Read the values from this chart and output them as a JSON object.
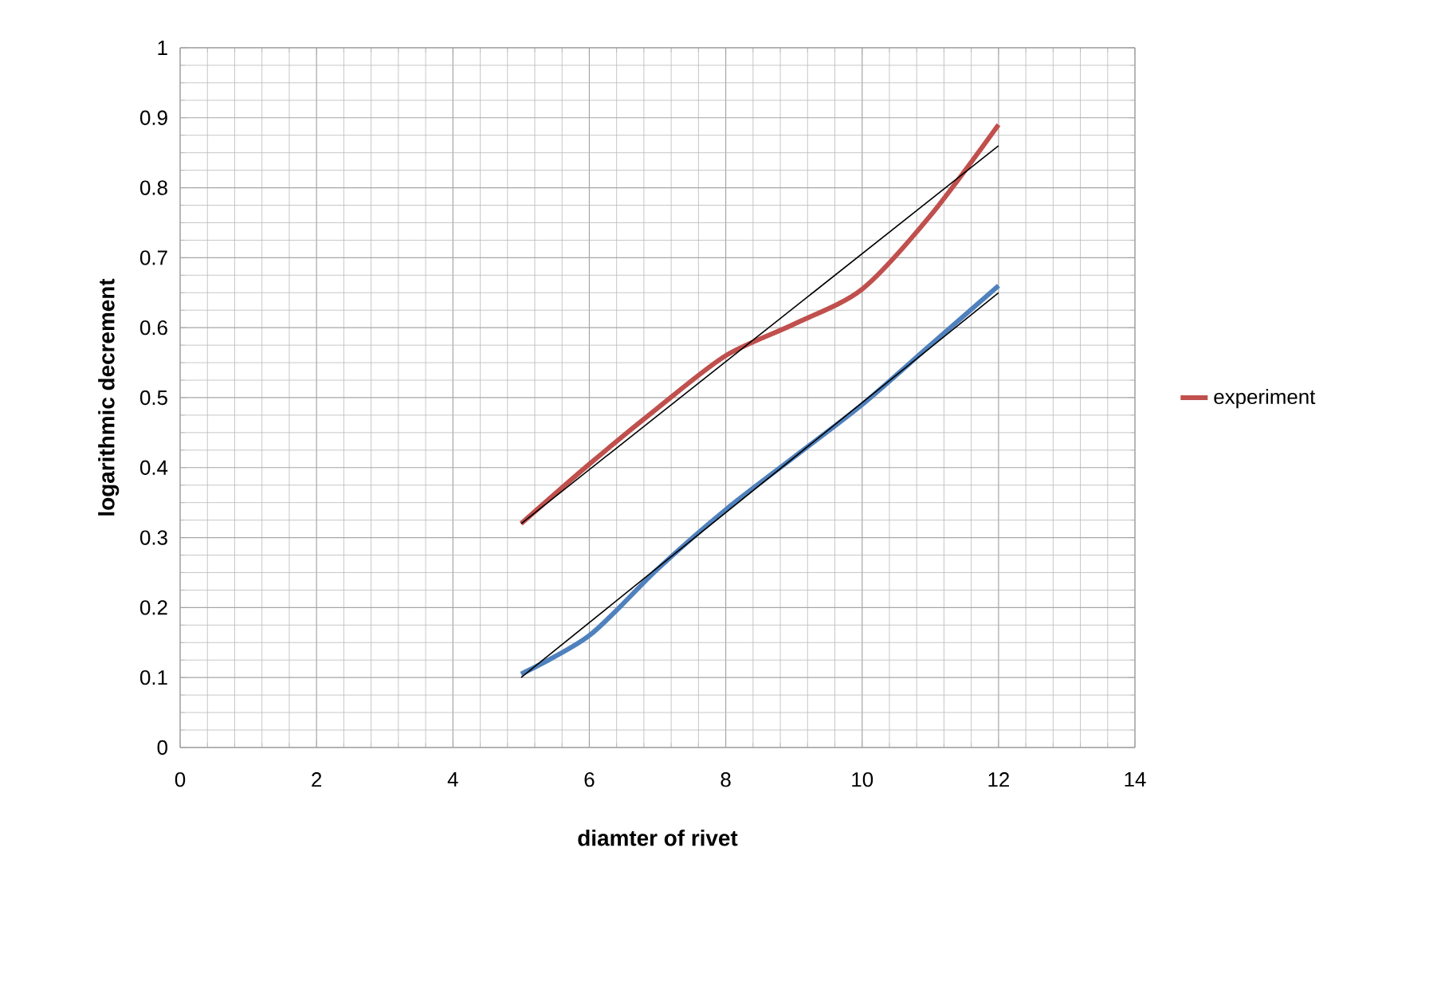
{
  "chart_data": {
    "type": "line",
    "xlabel": "diamter of rivet",
    "ylabel": "logarithmic decrement",
    "xlim": [
      0,
      14
    ],
    "xticks": [
      0,
      2,
      4,
      6,
      8,
      10,
      12,
      14
    ],
    "ylim": [
      0,
      1
    ],
    "yticks": [
      0,
      0.1,
      0.2,
      0.3,
      0.4,
      0.5,
      0.6,
      0.7,
      0.8,
      0.9,
      1
    ],
    "grid": true,
    "legend": "right",
    "marker": "none",
    "line_style": "solid",
    "series": [
      {
        "color": "#4f81bd",
        "x": [
          5,
          6,
          7,
          8,
          9,
          10,
          11,
          12
        ],
        "values": [
          0.105,
          0.16,
          0.255,
          0.34,
          0.415,
          0.49,
          0.575,
          0.66
        ]
      },
      {
        "name": "experiment",
        "color": "#c0504d",
        "x": [
          5,
          6,
          7,
          8,
          9,
          10,
          11,
          12
        ],
        "values": [
          0.32,
          0.405,
          0.485,
          0.56,
          0.605,
          0.655,
          0.76,
          0.89
        ]
      },
      {
        "color": "#000000",
        "x": [
          5,
          12
        ],
        "values": [
          0.1,
          0.65
        ]
      },
      {
        "color": "#000000",
        "x": [
          5,
          12
        ],
        "values": [
          0.32,
          0.86
        ]
      }
    ]
  }
}
